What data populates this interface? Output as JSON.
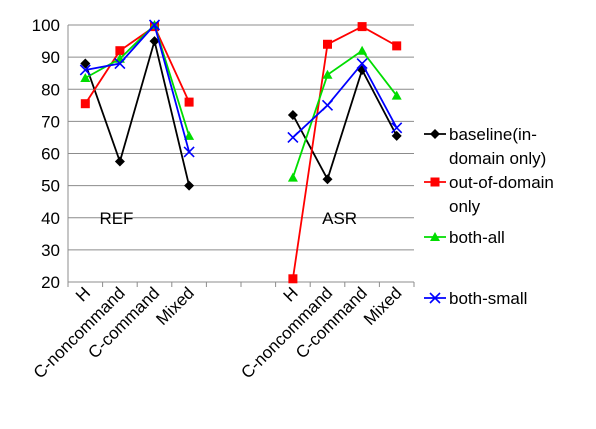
{
  "chart_data": {
    "type": "line",
    "title": "",
    "xlabel": "",
    "ylabel": "",
    "ylim": [
      20,
      100
    ],
    "yticks": [
      20,
      30,
      40,
      50,
      60,
      70,
      80,
      90,
      100
    ],
    "grid": "horizontal",
    "legend_position": "right",
    "categories": [
      "H",
      "C-noncommand",
      "C-command",
      "Mixed",
      "",
      "",
      "H",
      "C-noncommand",
      "C-command",
      "Mixed"
    ],
    "groups": [
      {
        "label": "REF",
        "y_position": 40
      },
      {
        "label": "ASR",
        "y_position": 40
      }
    ],
    "series": [
      {
        "name": "baseline(in-domain only)",
        "legend_lines": [
          "baseline(in-",
          "domain only)"
        ],
        "color": "#000000",
        "marker": "diamond",
        "values": [
          88,
          57.5,
          95,
          50,
          null,
          null,
          72,
          52,
          86,
          65.5
        ]
      },
      {
        "name": "out-of-domain only",
        "legend_lines": [
          "out-of-domain",
          "only"
        ],
        "color": "#ff0000",
        "marker": "square",
        "values": [
          75.5,
          92,
          99.5,
          76,
          null,
          null,
          21,
          94,
          99.5,
          93.5
        ]
      },
      {
        "name": "both-all",
        "legend_lines": [
          "both-all"
        ],
        "color": "#00dd00",
        "marker": "triangle",
        "values": [
          83.5,
          89.5,
          100,
          65.5,
          null,
          null,
          52.5,
          84.5,
          92,
          78
        ]
      },
      {
        "name": "both-small",
        "legend_lines": [
          "both-small"
        ],
        "color": "#0000ff",
        "marker": "x",
        "values": [
          86,
          88,
          100,
          60.5,
          null,
          null,
          65,
          75,
          88,
          68
        ]
      }
    ]
  }
}
